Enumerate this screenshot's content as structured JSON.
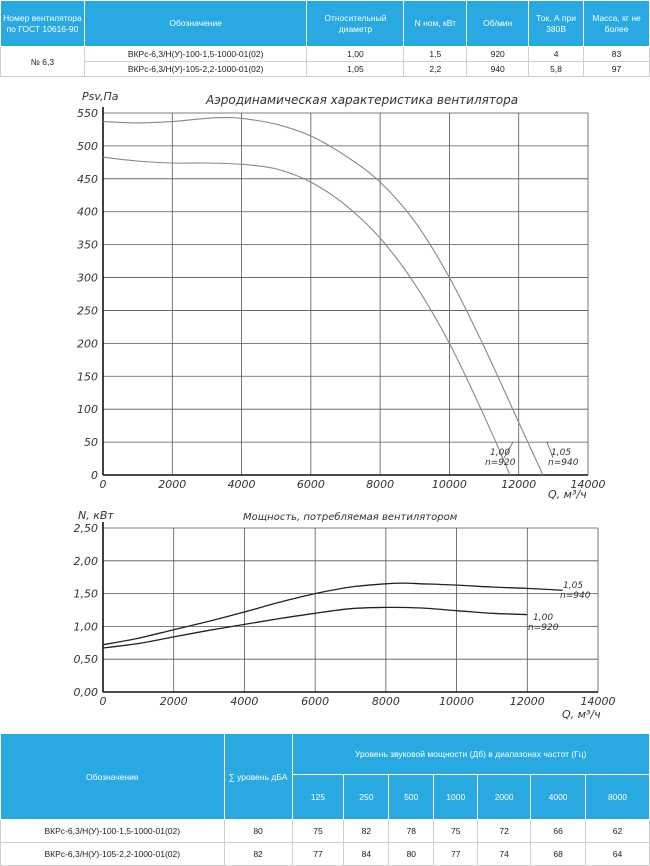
{
  "spec_table": {
    "headers": [
      "Номер вентилятора по ГОСТ 10616-90",
      "Обозначение",
      "Относительный диаметр",
      "N ном, кВт",
      "Об/мин",
      "Ток, А при 380В",
      "Масса, кг не более"
    ],
    "fan_number": "№ 6,3",
    "rows": [
      {
        "designation": "ВКРс-6,3/Н(У)-100-1,5-1000-01(02)",
        "diameter": "1,00",
        "power": "1,5",
        "rpm": "920",
        "current": "4",
        "mass": "83"
      },
      {
        "designation": "ВКРс-6,3/Н(У)-105-2,2-1000-01(02)",
        "diameter": "1,05",
        "power": "2,2",
        "rpm": "940",
        "current": "5,8",
        "mass": "97"
      }
    ]
  },
  "chart_data": [
    {
      "type": "line",
      "title": "Аэродинамическая характеристика вентилятора",
      "ylabel": "Psv,Па",
      "xlabel": "Q, м³/ч",
      "xlim": [
        0,
        14000
      ],
      "ylim": [
        0,
        550
      ],
      "xticks": [
        "0",
        "2000",
        "4000",
        "6000",
        "8000",
        "10000",
        "12000",
        "14000"
      ],
      "yticks": [
        "0",
        "50",
        "100",
        "150",
        "200",
        "250",
        "300",
        "350",
        "400",
        "450",
        "500",
        "550"
      ],
      "grid": true,
      "series": [
        {
          "name": "1,05 n=940",
          "x": [
            0,
            1000,
            2000,
            3000,
            3500,
            4000,
            5000,
            6000,
            7000,
            8000,
            9000,
            10000,
            11000,
            12000,
            12700
          ],
          "y": [
            537,
            535,
            537,
            542,
            543,
            542,
            533,
            515,
            485,
            445,
            385,
            300,
            195,
            80,
            0
          ]
        },
        {
          "name": "1,00 n=920",
          "x": [
            0,
            1000,
            2000,
            3000,
            4000,
            5000,
            6000,
            7000,
            8000,
            9000,
            10000,
            11000,
            11750
          ],
          "y": [
            483,
            477,
            474,
            474,
            472,
            465,
            445,
            410,
            360,
            290,
            200,
            90,
            0
          ]
        }
      ],
      "labels": [
        {
          "series": "1,00 n=920",
          "line1": "1,00",
          "line2": "n=920"
        },
        {
          "series": "1,05 n=940",
          "line1": "1,05",
          "line2": "n=940"
        }
      ]
    },
    {
      "type": "line",
      "title": "Мощность, потребляемая вентилятором",
      "ylabel": "N, кВт",
      "xlabel": "Q, м³/ч",
      "xlim": [
        0,
        14000
      ],
      "ylim": [
        0,
        2.5
      ],
      "xticks": [
        "0",
        "2000",
        "4000",
        "6000",
        "8000",
        "10000",
        "12000",
        "14000"
      ],
      "yticks": [
        "0,00",
        "0,50",
        "1,00",
        "1,50",
        "2,00",
        "2,50"
      ],
      "grid": true,
      "series": [
        {
          "name": "1,05 n=940",
          "x": [
            0,
            1000,
            2000,
            3000,
            4000,
            5000,
            6000,
            7000,
            8000,
            8500,
            9000,
            10000,
            11000,
            12000,
            13000
          ],
          "y": [
            0.72,
            0.82,
            0.95,
            1.08,
            1.22,
            1.37,
            1.5,
            1.6,
            1.65,
            1.66,
            1.65,
            1.63,
            1.6,
            1.58,
            1.55
          ]
        },
        {
          "name": "1,00 n=920",
          "x": [
            0,
            1000,
            2000,
            3000,
            4000,
            5000,
            6000,
            7000,
            8000,
            9000,
            10000,
            11000,
            12000
          ],
          "y": [
            0.67,
            0.74,
            0.84,
            0.94,
            1.03,
            1.12,
            1.2,
            1.27,
            1.29,
            1.28,
            1.24,
            1.2,
            1.18
          ]
        }
      ],
      "labels": [
        {
          "series": "1,05 n=940",
          "line1": "1,05",
          "line2": "n=940"
        },
        {
          "series": "1,00 n=920",
          "line1": "1,00",
          "line2": "n=920"
        }
      ]
    }
  ],
  "noise_table": {
    "header_designation": "Обозначение",
    "header_level": "∑ уровень дБА",
    "header_bands": "Уровень звуковой мощности (Дб) в диапазонах частот (Гц)",
    "frequencies": [
      "125",
      "250",
      "500",
      "1000",
      "2000",
      "4000",
      "8000"
    ],
    "rows": [
      {
        "designation": "ВКРс-6,3/Н(У)-100-1,5-1000-01(02)",
        "level": "80",
        "values": [
          "75",
          "82",
          "78",
          "75",
          "72",
          "66",
          "62"
        ]
      },
      {
        "designation": "ВКРс-6,3/Н(У)-105-2,2-1000-01(02)",
        "level": "82",
        "values": [
          "77",
          "84",
          "80",
          "77",
          "74",
          "68",
          "64"
        ]
      }
    ]
  }
}
